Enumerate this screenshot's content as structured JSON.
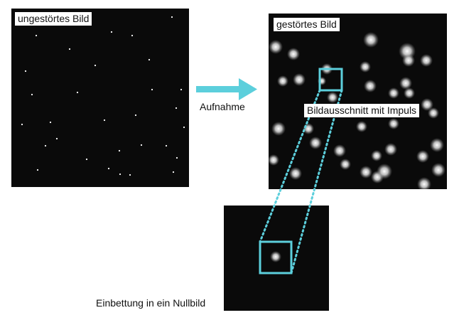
{
  "labels": {
    "clean_image": "ungestörtes Bild",
    "noisy_image": "gestörtes Bild",
    "acquisition": "Aufnahme",
    "crop_with_impulse": "Bildausschnitt mit Impuls",
    "embedding": "Einbettung in ein Nullbild"
  },
  "colors": {
    "accent": "#5ccfdc",
    "panel_background": "#0a0a0a",
    "label_background": "#ffffff"
  },
  "icons": {
    "arrow": "arrow-right-icon"
  }
}
